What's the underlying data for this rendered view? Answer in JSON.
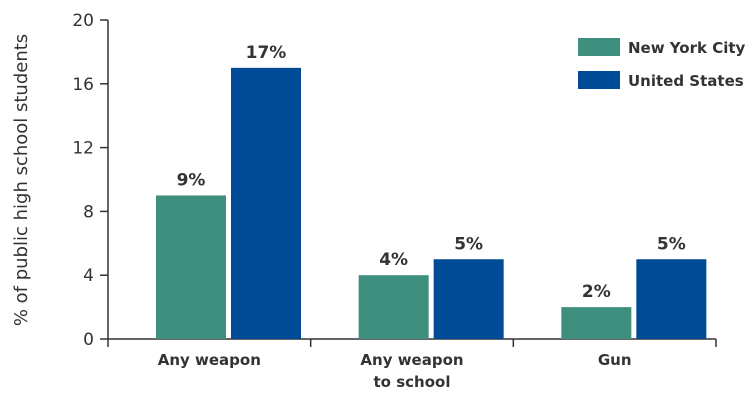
{
  "chart_data": {
    "type": "bar",
    "categories": [
      [
        "Any weapon"
      ],
      [
        "Any weapon",
        "to school"
      ],
      [
        "Gun"
      ]
    ],
    "series": [
      {
        "name": "New York City",
        "values": [
          9,
          4,
          2
        ],
        "labels": [
          "9%",
          "4%",
          "2%"
        ],
        "color": "#3f8f7f"
      },
      {
        "name": "United States",
        "values": [
          17,
          5,
          5
        ],
        "labels": [
          "17%",
          "5%",
          "5%"
        ],
        "color": "#004b96"
      }
    ],
    "ylabel": "% of public high school students",
    "xlabel": "",
    "title": "",
    "ylim": [
      0,
      20
    ],
    "yticks": [
      0,
      4,
      8,
      12,
      16,
      20
    ],
    "grid": false,
    "legend": "top-right"
  }
}
